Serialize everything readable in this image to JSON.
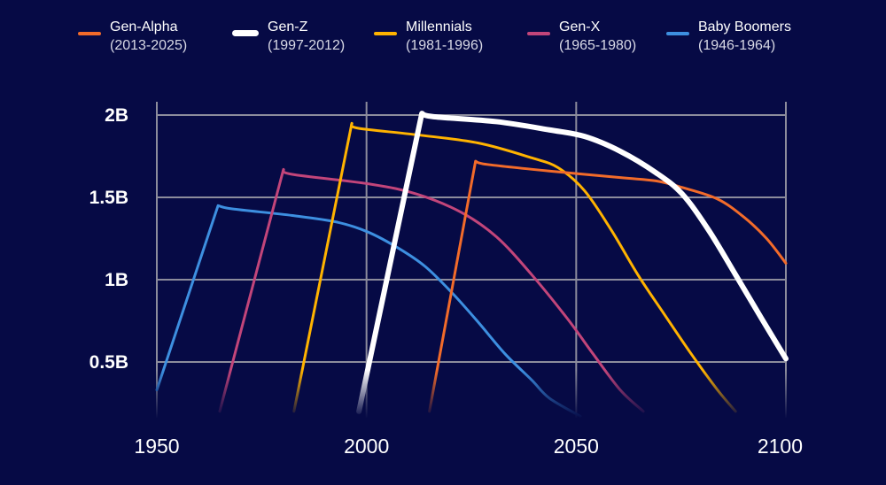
{
  "chart_data": {
    "type": "line",
    "title": "",
    "xlabel": "",
    "ylabel": "",
    "xlim": [
      1950,
      2100
    ],
    "ylim": [
      0.2,
      2.1
    ],
    "x_ticks": [
      {
        "value": 1950,
        "label": "1950"
      },
      {
        "value": 2000,
        "label": "2000"
      },
      {
        "value": 2050,
        "label": "2050"
      },
      {
        "value": 2100,
        "label": "2100"
      }
    ],
    "y_ticks": [
      {
        "value": 2,
        "label": "2B"
      },
      {
        "value": 1.5,
        "label": "1.5B"
      },
      {
        "value": 1,
        "label": "1B"
      },
      {
        "value": 0.5,
        "label": "0.5B"
      }
    ],
    "grid": true,
    "legend_position": "top",
    "background": "#060a45",
    "series": [
      {
        "name": "Gen-Alpha",
        "years": "(2013-2025)",
        "color": "#f26b2a",
        "width": 3,
        "x": [
          2015,
          2026,
          2028.8,
          2043.6,
          2060.5,
          2069,
          2075.3,
          2083.7,
          2090,
          2095.4,
          2100
        ],
        "y": [
          0.2,
          1.72,
          1.7,
          1.66,
          1.62,
          1.6,
          1.56,
          1.49,
          1.38,
          1.25,
          1.1
        ]
      },
      {
        "name": "Gen-Z",
        "years": "(1997-2012)",
        "color": "#ffffff",
        "width": 6,
        "x": [
          1998.2,
          2013.2,
          2016,
          2031,
          2043.6,
          2052,
          2060.5,
          2069,
          2075.3,
          2081.6,
          2088,
          2094.3,
          2100
        ],
        "y": [
          0.2,
          2.01,
          1.99,
          1.96,
          1.91,
          1.87,
          1.78,
          1.65,
          1.52,
          1.3,
          1.03,
          0.76,
          0.52
        ]
      },
      {
        "name": "Millennials",
        "years": "(1981-1996)",
        "color": "#ffb300",
        "width": 3,
        "x": [
          1982.7,
          1996.5,
          1998,
          2012,
          2026.7,
          2039.4,
          2045.7,
          2052,
          2058.4,
          2064.7,
          2071,
          2077.4,
          2083.7,
          2088
        ],
        "y": [
          0.2,
          1.95,
          1.92,
          1.88,
          1.83,
          1.74,
          1.68,
          1.54,
          1.3,
          1.03,
          0.79,
          0.55,
          0.33,
          0.2
        ]
      },
      {
        "name": "Gen-X",
        "years": "(1965-1980)",
        "color": "#c2457a",
        "width": 3,
        "x": [
          1965,
          1980.2,
          1982.3,
          2001,
          2012,
          2022.5,
          2031,
          2039.4,
          2048,
          2054,
          2060.5,
          2066
        ],
        "y": [
          0.2,
          1.67,
          1.64,
          1.58,
          1.52,
          1.41,
          1.26,
          1.03,
          0.76,
          0.55,
          0.33,
          0.2
        ]
      },
      {
        "name": "Baby Boomers",
        "years": "(1946-1964)",
        "color": "#3d8fe0",
        "width": 3,
        "x": [
          1950,
          1964.6,
          1968,
          1982.3,
          1992.9,
          2000.3,
          2007.7,
          2014,
          2020.4,
          2026.7,
          2033,
          2039.4,
          2043.6,
          2051
        ],
        "y": [
          0.33,
          1.45,
          1.43,
          1.39,
          1.35,
          1.29,
          1.19,
          1.08,
          0.92,
          0.74,
          0.55,
          0.39,
          0.28,
          0.17
        ]
      }
    ]
  }
}
